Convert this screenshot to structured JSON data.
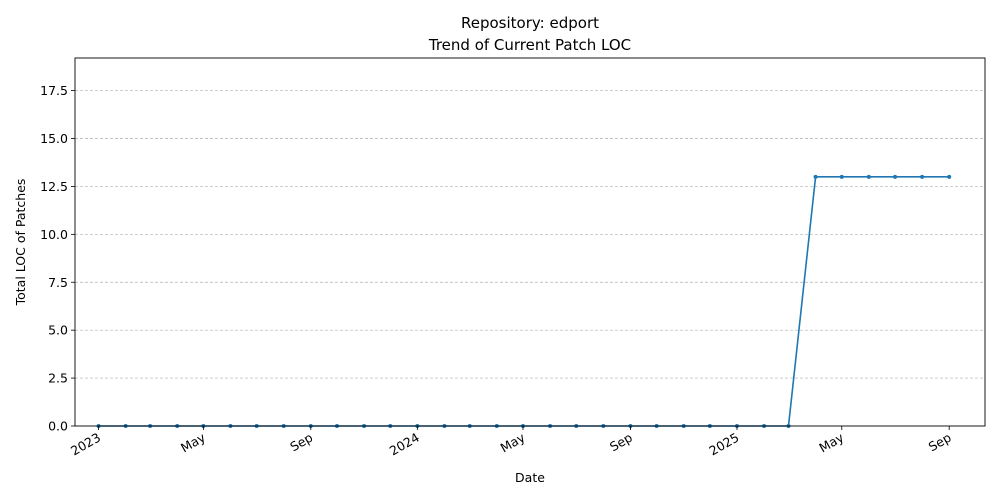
{
  "chart_data": {
    "type": "line",
    "title": "Repository: edport",
    "subtitle": "Trend of Current Patch LOC",
    "xlabel": "Date",
    "ylabel": "Total LOC of Patches",
    "ylim": [
      0,
      19.2
    ],
    "yticks": [
      "0.0",
      "2.5",
      "5.0",
      "7.5",
      "10.0",
      "12.5",
      "15.0",
      "17.5"
    ],
    "xticks": [
      {
        "label": "2023",
        "date": "2023-01-01"
      },
      {
        "label": "May",
        "date": "2023-05-01"
      },
      {
        "label": "Sep",
        "date": "2023-09-01"
      },
      {
        "label": "2024",
        "date": "2024-01-01"
      },
      {
        "label": "May",
        "date": "2024-05-01"
      },
      {
        "label": "Sep",
        "date": "2024-09-01"
      },
      {
        "label": "2025",
        "date": "2025-01-01"
      },
      {
        "label": "May",
        "date": "2025-05-01"
      },
      {
        "label": "Sep",
        "date": "2025-09-01"
      }
    ],
    "xlim": [
      "2022-12-05",
      "2025-10-12"
    ],
    "grid": "y-dashed",
    "series": [
      {
        "color": "#1f77b4",
        "x": [
          "2023-01-01",
          "2023-02-01",
          "2023-03-01",
          "2023-04-01",
          "2023-05-01",
          "2023-06-01",
          "2023-07-01",
          "2023-08-01",
          "2023-09-01",
          "2023-10-01",
          "2023-11-01",
          "2023-12-01",
          "2024-01-01",
          "2024-02-01",
          "2024-03-01",
          "2024-04-01",
          "2024-05-01",
          "2024-06-01",
          "2024-07-01",
          "2024-08-01",
          "2024-09-01",
          "2024-10-01",
          "2024-11-01",
          "2024-12-01",
          "2025-01-01",
          "2025-02-01",
          "2025-03-01",
          "2025-04-01",
          "2025-05-01",
          "2025-06-01",
          "2025-07-01",
          "2025-08-01",
          "2025-09-01"
        ],
        "values": [
          0,
          0,
          0,
          0,
          0,
          0,
          0,
          0,
          0,
          0,
          0,
          0,
          0,
          0,
          0,
          0,
          0,
          0,
          0,
          0,
          0,
          0,
          0,
          0,
          0,
          0,
          0,
          13,
          13,
          13,
          13,
          13,
          13
        ]
      }
    ]
  }
}
